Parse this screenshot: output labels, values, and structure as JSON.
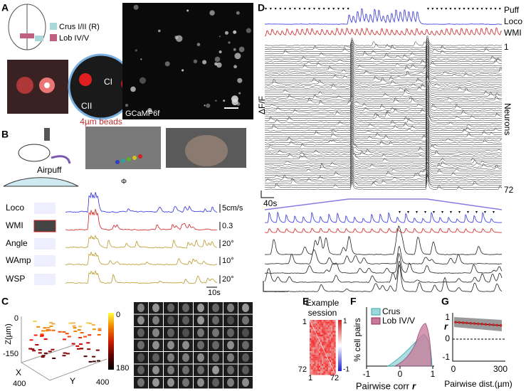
{
  "panel_labels": [
    "A",
    "B",
    "C",
    "D",
    "E",
    "F",
    "G"
  ],
  "panel_a": {
    "legend": [
      "Crus I/II (R)",
      "Lob IV/V"
    ],
    "inset_labels": [
      "CI",
      "CII"
    ],
    "beads": "4µm beads",
    "indicator": "GCaMP6f"
  },
  "panel_b": {
    "airpuff": "Airpuff",
    "angle_symbol": "Φ",
    "traces": [
      {
        "name": "Loco",
        "scale": "5cm/s"
      },
      {
        "name": "WMI",
        "scale": "0.3"
      },
      {
        "name": "Angle",
        "scale": "20°"
      },
      {
        "name": "WAmp",
        "scale": "10°"
      },
      {
        "name": "WSP",
        "scale": "20°"
      }
    ],
    "time_scale": "10s"
  },
  "panel_c": {
    "z_label": "Z(µm)",
    "z_ticks": [
      "0",
      "-150"
    ],
    "x_label": "X",
    "y_label": "Y",
    "x_tick": "400",
    "y_tick": "400",
    "colorbar_ticks": [
      "0",
      "180"
    ]
  },
  "panel_d": {
    "rows": [
      "Puff",
      "Loco",
      "WMI"
    ],
    "neuron_first": "1",
    "neuron_label": "Neurons",
    "neuron_last": "72",
    "y_label": "ΔF/F",
    "time_scale": "40s"
  },
  "panel_e": {
    "title": [
      "Example",
      "session"
    ],
    "row_ticks": [
      "1",
      "72"
    ],
    "col_ticks": [
      "1",
      "72"
    ],
    "colorbar_ticks": [
      "1",
      "-1"
    ]
  },
  "panel_f": {
    "y_label": "% cell pairs",
    "legend": [
      "Crus",
      "Lob IV/V"
    ],
    "x_ticks": [
      "-1",
      "0",
      "1"
    ],
    "x_label": "Pairwise corr",
    "x_var": "r"
  },
  "panel_g": {
    "y_label": "r",
    "y_ticks": [
      "1",
      "0",
      "-1"
    ],
    "x_ticks": [
      "0",
      "300"
    ],
    "x_label": "Pairwise dist.(µm)"
  }
}
